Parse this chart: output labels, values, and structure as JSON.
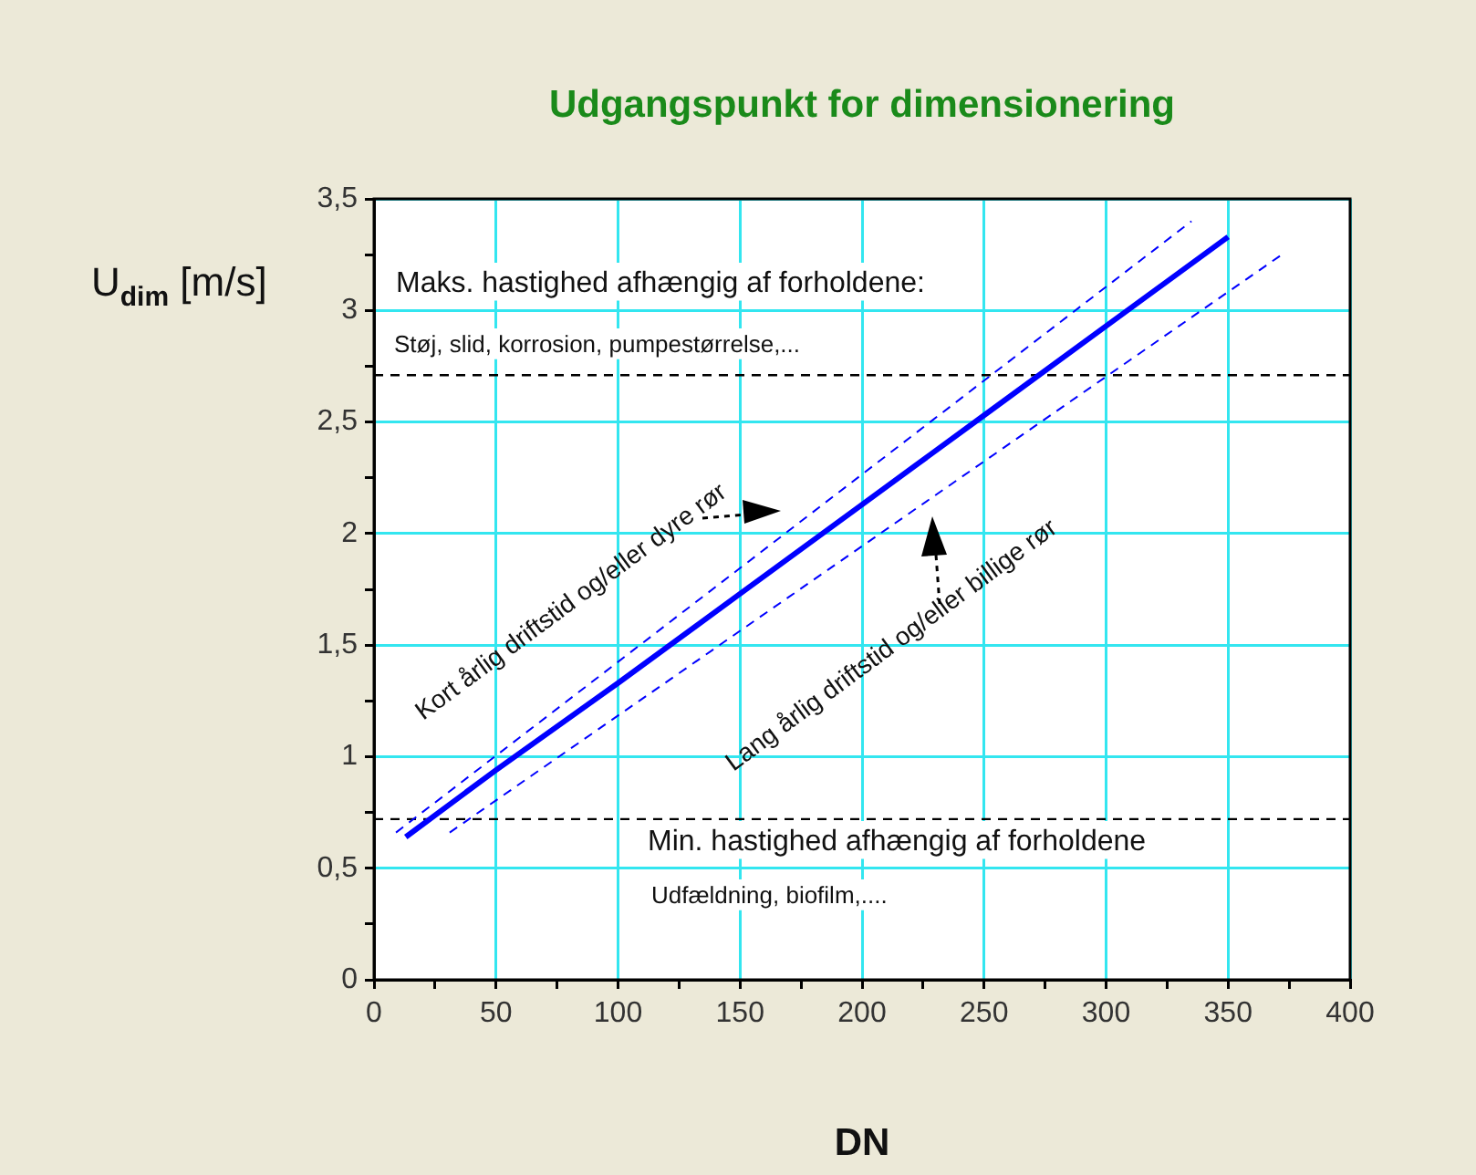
{
  "chart_data": {
    "type": "line",
    "title": "Udgangspunkt for dimensionering",
    "xlabel": "DN",
    "ylabel": "U$_{dim}$ [m/s]",
    "xlim": [
      0,
      400
    ],
    "ylim": [
      0,
      3.5
    ],
    "xticks": [
      0,
      {
        "value": 25,
        "label": null
      },
      50,
      {
        "value": 75,
        "label": null
      },
      100,
      {
        "value": 125,
        "label": null
      },
      150,
      {
        "value": 175,
        "label": null
      },
      200,
      {
        "value": 225,
        "label": null
      },
      250,
      {
        "value": 275,
        "label": null
      },
      300,
      {
        "value": 325,
        "label": null
      },
      350,
      {
        "value": 375,
        "label": null
      },
      400
    ],
    "yticks": [
      0,
      {
        "value": 0.25,
        "label": null
      },
      {
        "value": 0.5,
        "label": "0,5"
      },
      {
        "value": 0.75,
        "label": null
      },
      1,
      {
        "value": 1.25,
        "label": null
      },
      {
        "value": 1.5,
        "label": "1,5"
      },
      {
        "value": 1.75,
        "label": null
      },
      2,
      {
        "value": 2.25,
        "label": null
      },
      {
        "value": 2.5,
        "label": "2,5"
      },
      {
        "value": 2.75,
        "label": null
      },
      3,
      {
        "value": 3.25,
        "label": null
      },
      {
        "value": 3.5,
        "label": "3,5"
      }
    ],
    "grid": true,
    "legend": false,
    "marker": "none",
    "series": [
      {
        "color": "#0000ff",
        "line_style": "solid",
        "x": [
          13,
          50,
          100,
          150,
          200,
          250,
          300,
          350
        ],
        "values": [
          0.64,
          0.94,
          1.33,
          1.73,
          2.13,
          2.53,
          2.93,
          3.33
        ]
      },
      {
        "color": "#0000ff",
        "line_style": "dashed",
        "x": [
          9,
          335
        ],
        "values": [
          0.66,
          3.4
        ]
      },
      {
        "color": "#0000ff",
        "line_style": "dashed",
        "x": [
          31,
          372
        ],
        "values": [
          0.66,
          3.25
        ]
      }
    ],
    "ref_lines": [
      {
        "axis": "y",
        "value": 2.71,
        "color": "#000000",
        "line_style": "dashed"
      },
      {
        "axis": "y",
        "value": 0.72,
        "color": "#000000",
        "line_style": "dashed"
      }
    ],
    "annotations": [
      "Maks. hastighed afhængig af forholdene:",
      "Støj, slid, korrosion, pumpestørrelse,...",
      "Min. hastighed afhængig af forholdene",
      "Udfældning, biofilm,....",
      "Kort årlig driftstid og/eller dyre rør",
      "Lang årlig driftstid og/eller billige rør"
    ]
  }
}
